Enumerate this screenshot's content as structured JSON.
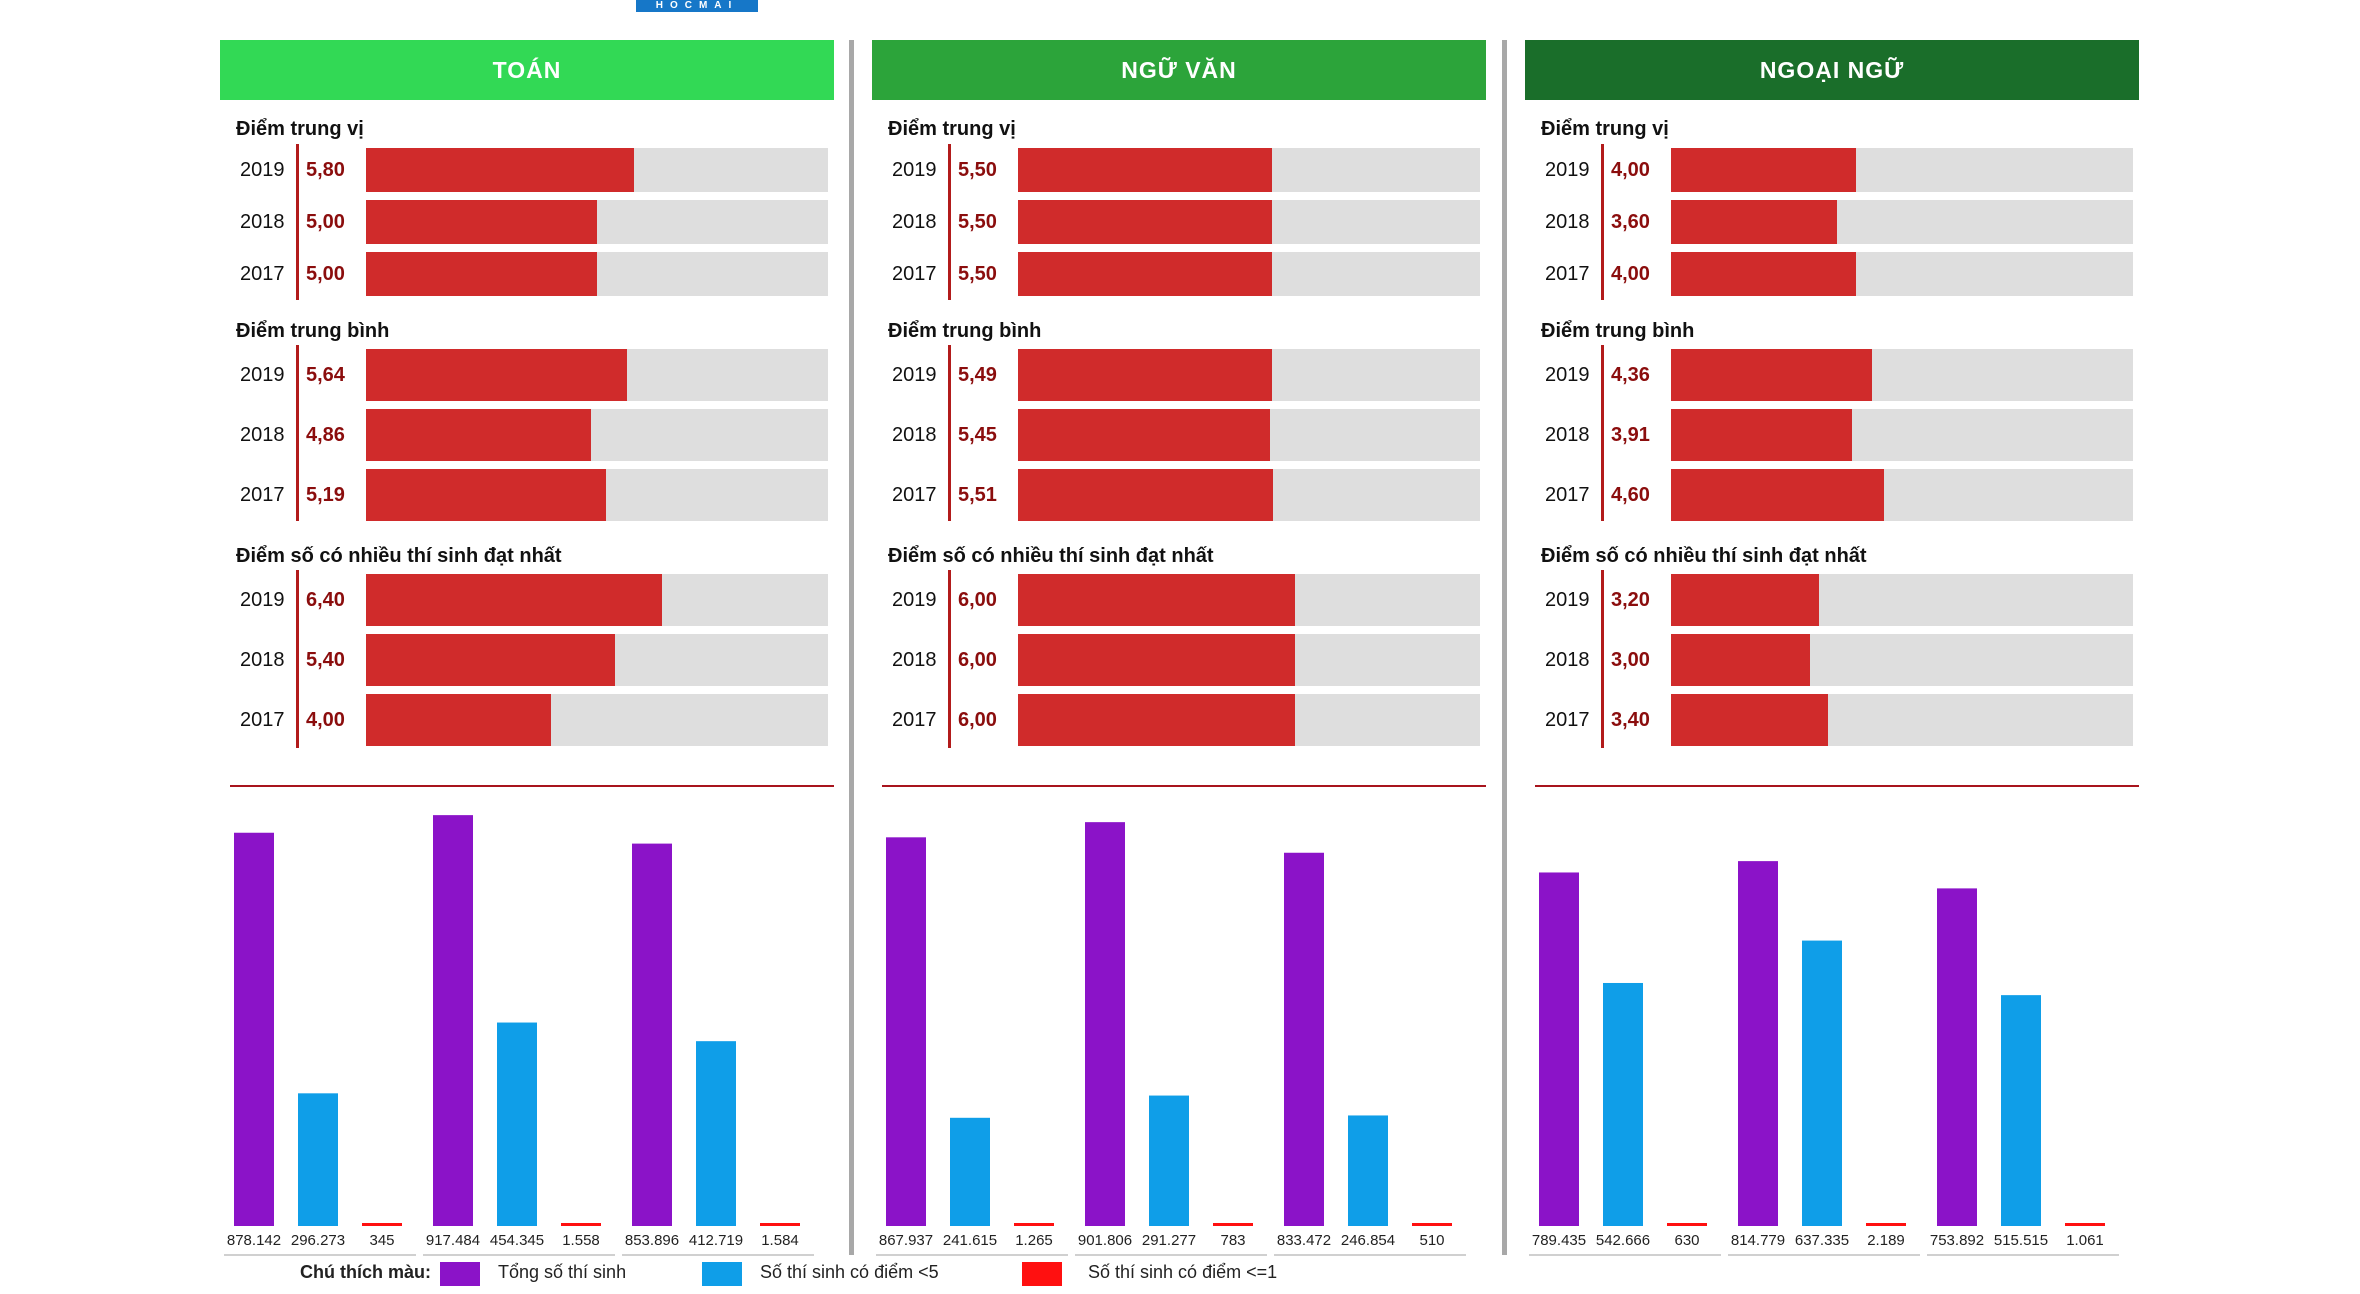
{
  "logo": "HOCMAI",
  "colors": {
    "total": "#8b13c8",
    "below5": "#0f9ee8",
    "below1": "#ff1010",
    "bar": "#d02b2b",
    "track": "#dedede",
    "label": "#8b0d0d"
  },
  "sections": {
    "median": "Điểm trung vị",
    "mean": "Điểm trung bình",
    "mode": "Điểm số có nhiều thí sinh đạt nhất"
  },
  "years": [
    "2019",
    "2018",
    "2017"
  ],
  "panels": [
    {
      "title": "TOÁN",
      "header_color": "#32d955",
      "median": [
        "5,80",
        "5,00",
        "5,00"
      ],
      "mean": [
        "5,64",
        "4,86",
        "5,19"
      ],
      "mode": [
        "6,40",
        "5,40",
        "4,00"
      ],
      "counts": [
        {
          "year": "2019",
          "total": "878.142",
          "below5": "296.273",
          "below1": "345"
        },
        {
          "year": "2018",
          "total": "917.484",
          "below5": "454.345",
          "below1": "1.558"
        },
        {
          "year": "2017",
          "total": "853.896",
          "below5": "412.719",
          "below1": "1.584"
        }
      ]
    },
    {
      "title": "NGỮ VĂN",
      "header_color": "#2ca43a",
      "median": [
        "5,50",
        "5,50",
        "5,50"
      ],
      "mean": [
        "5,49",
        "5,45",
        "5,51"
      ],
      "mode": [
        "6,00",
        "6,00",
        "6,00"
      ],
      "counts": [
        {
          "year": "2019",
          "total": "867.937",
          "below5": "241.615",
          "below1": "1.265"
        },
        {
          "year": "2018",
          "total": "901.806",
          "below5": "291.277",
          "below1": "783"
        },
        {
          "year": "2017",
          "total": "833.472",
          "below5": "246.854",
          "below1": "510"
        }
      ]
    },
    {
      "title": "NGOẠI NGỮ",
      "header_color": "#1a6e2a",
      "median": [
        "4,00",
        "3,60",
        "4,00"
      ],
      "mean": [
        "4,36",
        "3,91",
        "4,60"
      ],
      "mode": [
        "3,20",
        "3,00",
        "3,40"
      ],
      "counts": [
        {
          "year": "2019",
          "total": "789.435",
          "below5": "542.666",
          "below1": "630"
        },
        {
          "year": "2018",
          "total": "814.779",
          "below5": "637.335",
          "below1": "2.189"
        },
        {
          "year": "2017",
          "total": "753.892",
          "below5": "515.515",
          "below1": "1.061"
        }
      ]
    }
  ],
  "legend": {
    "title": "Chú thích màu:",
    "total": "Tổng số thí sinh",
    "below5": "Số thí sinh có điểm <5",
    "below1": "Số thí sinh có điểm <=1"
  },
  "chart_data": [
    {
      "type": "bar",
      "title": "TOÁN – Điểm trung vị",
      "categories": [
        "2019",
        "2018",
        "2017"
      ],
      "values": [
        5.8,
        5.0,
        5.0
      ],
      "ylim": [
        0,
        10
      ]
    },
    {
      "type": "bar",
      "title": "TOÁN – Điểm trung bình",
      "categories": [
        "2019",
        "2018",
        "2017"
      ],
      "values": [
        5.64,
        4.86,
        5.19
      ],
      "ylim": [
        0,
        10
      ]
    },
    {
      "type": "bar",
      "title": "TOÁN – Điểm số có nhiều thí sinh đạt nhất",
      "categories": [
        "2019",
        "2018",
        "2017"
      ],
      "values": [
        6.4,
        5.4,
        4.0
      ],
      "ylim": [
        0,
        10
      ]
    },
    {
      "type": "bar",
      "title": "TOÁN – Số thí sinh",
      "categories": [
        "2019",
        "2018",
        "2017"
      ],
      "series": [
        {
          "name": "Tổng số thí sinh",
          "values": [
            878142,
            917484,
            853896
          ]
        },
        {
          "name": "Số thí sinh có điểm <5",
          "values": [
            296273,
            454345,
            412719
          ]
        },
        {
          "name": "Số thí sinh có điểm <=1",
          "values": [
            345,
            1558,
            1584
          ]
        }
      ]
    },
    {
      "type": "bar",
      "title": "NGỮ VĂN – Điểm trung vị",
      "categories": [
        "2019",
        "2018",
        "2017"
      ],
      "values": [
        5.5,
        5.5,
        5.5
      ],
      "ylim": [
        0,
        10
      ]
    },
    {
      "type": "bar",
      "title": "NGỮ VĂN – Điểm trung bình",
      "categories": [
        "2019",
        "2018",
        "2017"
      ],
      "values": [
        5.49,
        5.45,
        5.51
      ],
      "ylim": [
        0,
        10
      ]
    },
    {
      "type": "bar",
      "title": "NGỮ VĂN – Điểm số có nhiều thí sinh đạt nhất",
      "categories": [
        "2019",
        "2018",
        "2017"
      ],
      "values": [
        6.0,
        6.0,
        6.0
      ],
      "ylim": [
        0,
        10
      ]
    },
    {
      "type": "bar",
      "title": "NGỮ VĂN – Số thí sinh",
      "categories": [
        "2019",
        "2018",
        "2017"
      ],
      "series": [
        {
          "name": "Tổng số thí sinh",
          "values": [
            867937,
            901806,
            833472
          ]
        },
        {
          "name": "Số thí sinh có điểm <5",
          "values": [
            241615,
            291277,
            246854
          ]
        },
        {
          "name": "Số thí sinh có điểm <=1",
          "values": [
            1265,
            783,
            510
          ]
        }
      ]
    },
    {
      "type": "bar",
      "title": "NGOẠI NGỮ – Điểm trung vị",
      "categories": [
        "2019",
        "2018",
        "2017"
      ],
      "values": [
        4.0,
        3.6,
        4.0
      ],
      "ylim": [
        0,
        10
      ]
    },
    {
      "type": "bar",
      "title": "NGOẠI NGỮ – Điểm trung bình",
      "categories": [
        "2019",
        "2018",
        "2017"
      ],
      "values": [
        4.36,
        3.91,
        4.6
      ],
      "ylim": [
        0,
        10
      ]
    },
    {
      "type": "bar",
      "title": "NGOẠI NGỮ – Điểm số có nhiều thí sinh đạt nhất",
      "categories": [
        "2019",
        "2018",
        "2017"
      ],
      "values": [
        3.2,
        3.0,
        3.4
      ],
      "ylim": [
        0,
        10
      ]
    },
    {
      "type": "bar",
      "title": "NGOẠI NGỮ – Số thí sinh",
      "categories": [
        "2019",
        "2018",
        "2017"
      ],
      "series": [
        {
          "name": "Tổng số thí sinh",
          "values": [
            789435,
            814779,
            753892
          ]
        },
        {
          "name": "Số thí sinh có điểm <5",
          "values": [
            542666,
            637335,
            515515
          ]
        },
        {
          "name": "Số thí sinh có điểm <=1",
          "values": [
            630,
            2189,
            1061
          ]
        }
      ]
    }
  ]
}
